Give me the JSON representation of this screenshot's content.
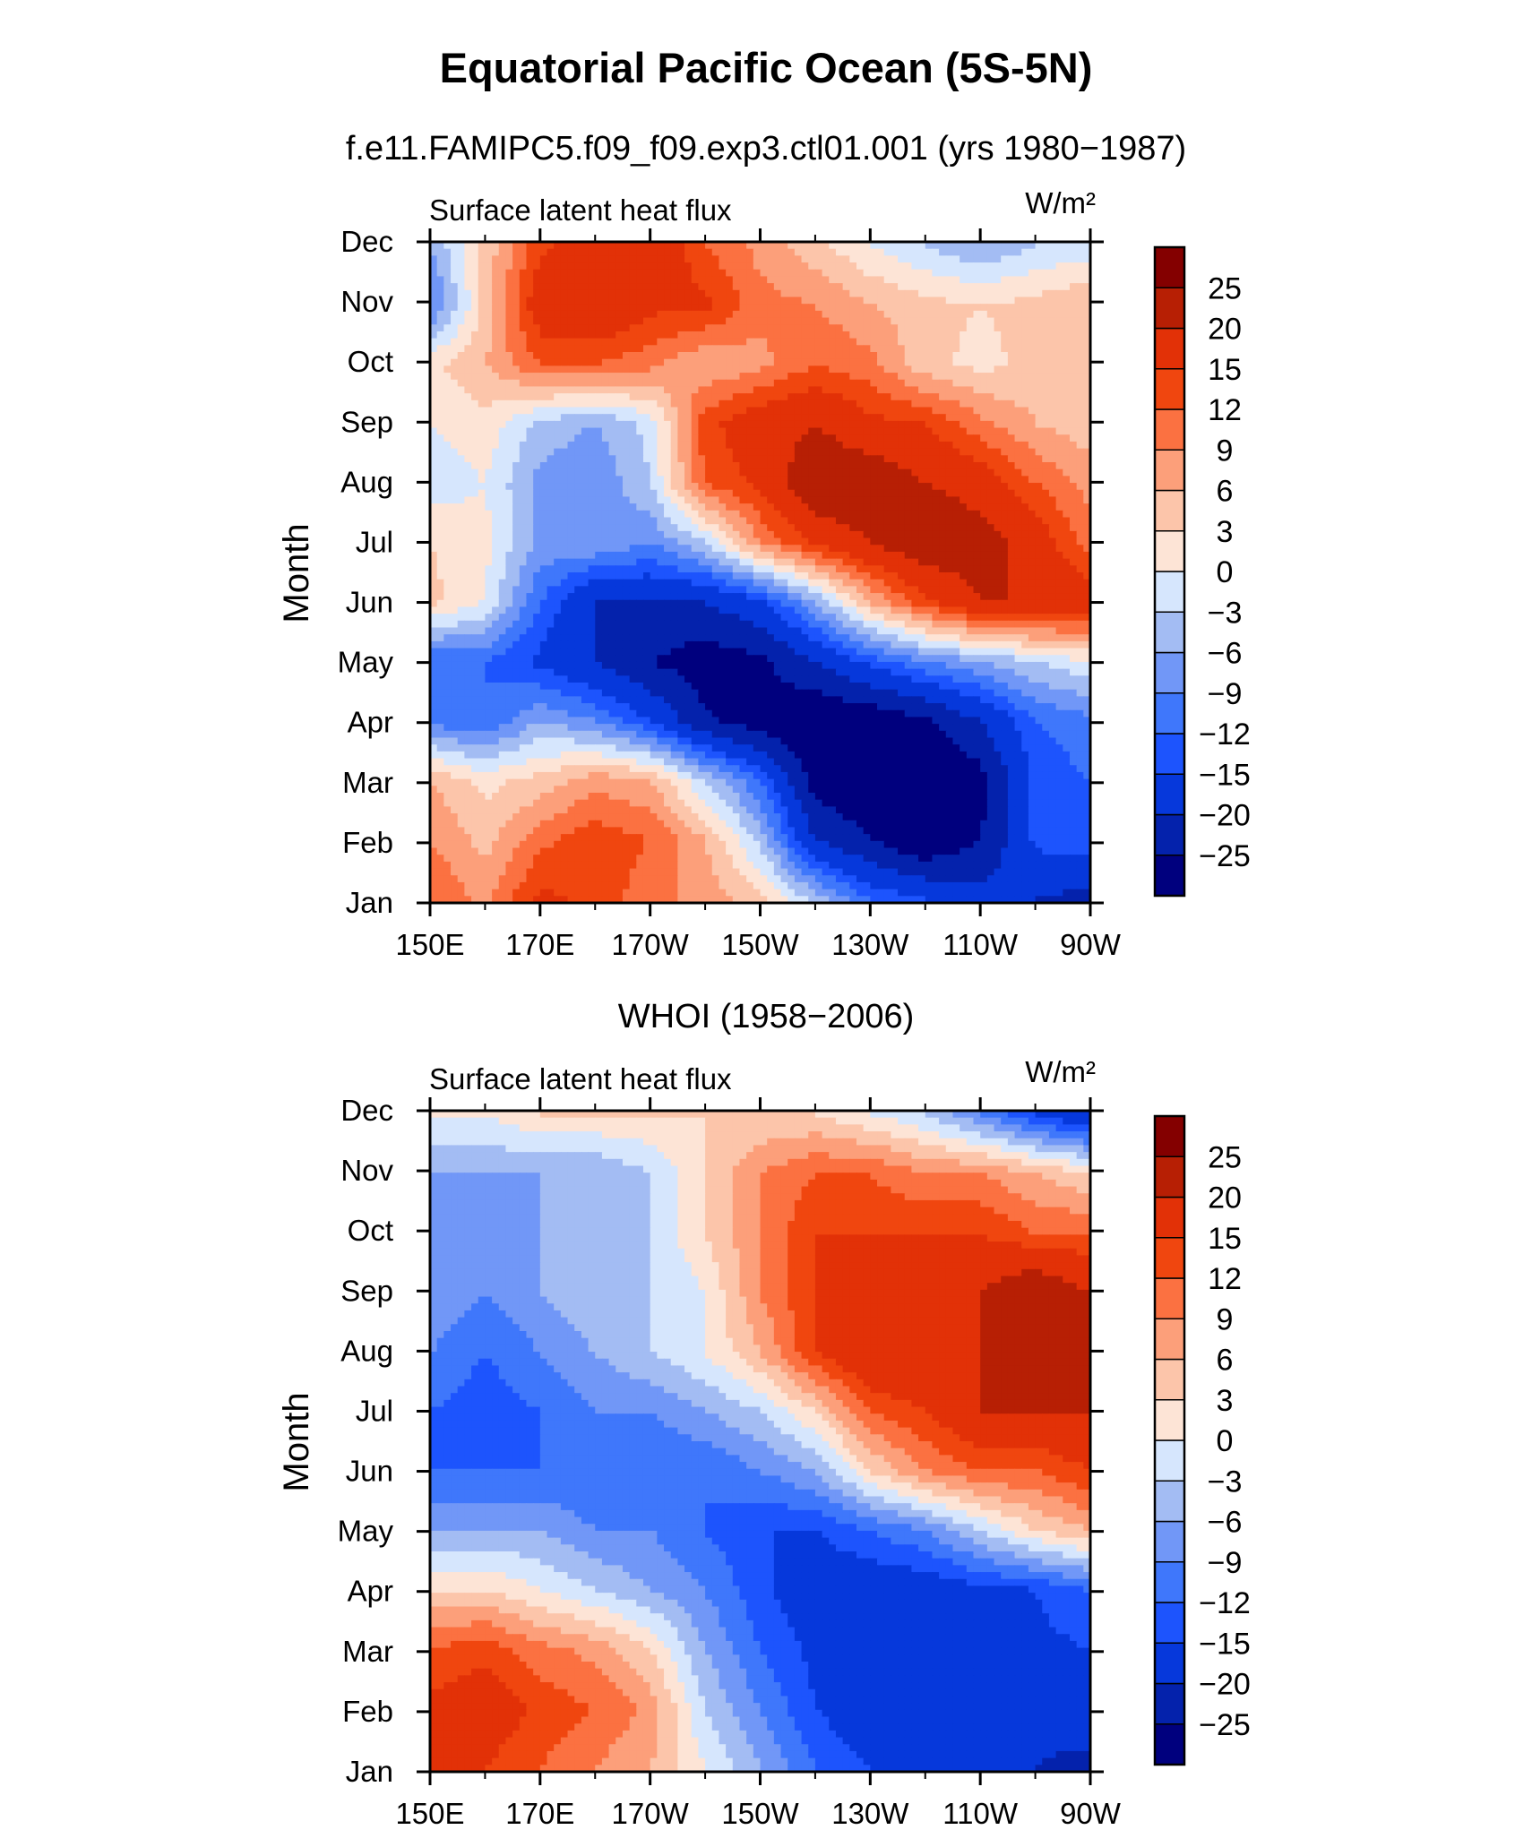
{
  "figure": {
    "title": "Equatorial Pacific Ocean (5S-5N)"
  },
  "colors": {
    "levels": [
      -25,
      -20,
      -15,
      -12,
      -9,
      -6,
      -3,
      0,
      3,
      6,
      9,
      12,
      15,
      20,
      25
    ],
    "fills": [
      "#00007e",
      "#0422ac",
      "#0638db",
      "#1d54fd",
      "#3f77fb",
      "#7197f7",
      "#a3bcf3",
      "#d6e6fd",
      "#fde4d6",
      "#fcc5aa",
      "#fc9f7a",
      "#fb7141",
      "#f0460f",
      "#e23107",
      "#b71f04",
      "#840000"
    ]
  },
  "chart_data": [
    {
      "type": "heatmap",
      "subtitle": "f.e11.FAMIPC5.f09_f09.exp3.ctl01.001 (yrs 1980−1987)",
      "left_string": "Surface latent heat flux",
      "units": "W/m²",
      "ylabel": "Month",
      "y_ticks": [
        "Jan",
        "Feb",
        "Mar",
        "Apr",
        "May",
        "Jun",
        "Jul",
        "Aug",
        "Sep",
        "Oct",
        "Nov",
        "Dec"
      ],
      "x_ticks": [
        "150E",
        "170E",
        "170W",
        "150W",
        "130W",
        "110W",
        "90W"
      ],
      "x_range": [
        150,
        270
      ],
      "colorbar_labels": [
        "25",
        "20",
        "15",
        "12",
        "9",
        "6",
        "3",
        "0",
        "−3",
        "−6",
        "−9",
        "−12",
        "−15",
        "−20",
        "−25"
      ],
      "lons": [
        150,
        160,
        170,
        180,
        190,
        200,
        210,
        220,
        230,
        240,
        250,
        260,
        270
      ],
      "values": [
        [
          12,
          8,
          16,
          14,
          10,
          8,
          4,
          -4,
          -12,
          -15,
          -18,
          -20,
          -22
        ],
        [
          9,
          5,
          11,
          14,
          12,
          6,
          -4,
          -20,
          -25,
          -30,
          -25,
          -14,
          -12
        ],
        [
          6,
          2,
          4,
          8,
          6,
          -3,
          -12,
          -27,
          -30,
          -30,
          -27,
          -14,
          -12
        ],
        [
          -10,
          -12,
          -6,
          -9,
          -15,
          -24,
          -28,
          -30,
          -29,
          -26,
          -20,
          -12,
          -10
        ],
        [
          -12,
          -12,
          -16,
          -20,
          -25,
          -28,
          -26,
          -20,
          -14,
          -9,
          -6,
          -3,
          0
        ],
        [
          4,
          0,
          -12,
          -20,
          -20,
          -20,
          -16,
          -6,
          6,
          14,
          20,
          20,
          18
        ],
        [
          3,
          1,
          -7,
          -6,
          -9,
          -3,
          9,
          16,
          20,
          24,
          22,
          18,
          10
        ],
        [
          -2,
          0,
          -7,
          -9,
          -3,
          12,
          16,
          24,
          24,
          20,
          18,
          12,
          8
        ],
        [
          0,
          2,
          -4,
          -6,
          -2,
          14,
          18,
          20,
          16,
          15,
          10,
          6,
          4
        ],
        [
          2,
          6,
          12,
          12,
          10,
          6,
          8,
          12,
          10,
          4,
          2,
          4,
          6
        ],
        [
          -10,
          4,
          18,
          20,
          16,
          16,
          10,
          9,
          6,
          4,
          3,
          4,
          6
        ],
        [
          -6,
          4,
          14,
          18,
          20,
          12,
          8,
          4,
          0,
          -3,
          -6,
          -3,
          -2
        ]
      ]
    },
    {
      "type": "heatmap",
      "subtitle": "WHOI (1958−2006)",
      "left_string": "Surface latent heat flux",
      "units": "W/m²",
      "ylabel": "Month",
      "y_ticks": [
        "Jan",
        "Feb",
        "Mar",
        "Apr",
        "May",
        "Jun",
        "Jul",
        "Aug",
        "Sep",
        "Oct",
        "Nov",
        "Dec"
      ],
      "x_ticks": [
        "150E",
        "170E",
        "170W",
        "150W",
        "130W",
        "110W",
        "90W"
      ],
      "x_range": [
        150,
        270
      ],
      "colorbar_labels": [
        "25",
        "20",
        "15",
        "12",
        "9",
        "6",
        "3",
        "0",
        "−3",
        "−6",
        "−9",
        "−12",
        "−15",
        "−20",
        "−25"
      ],
      "lons": [
        150,
        160,
        170,
        180,
        190,
        200,
        210,
        220,
        230,
        240,
        250,
        260,
        270
      ],
      "values": [
        [
          15,
          15,
          12,
          9,
          6,
          0,
          -6,
          -12,
          -15,
          -18,
          -18,
          -20,
          -22
        ],
        [
          16,
          18,
          14,
          12,
          8,
          -3,
          -9,
          -15,
          -18,
          -20,
          -20,
          -18,
          -16
        ],
        [
          12,
          14,
          10,
          8,
          3,
          -6,
          -12,
          -16,
          -18,
          -18,
          -18,
          -16,
          -15
        ],
        [
          3,
          3,
          0,
          -3,
          -6,
          -9,
          -14,
          -18,
          -18,
          -18,
          -16,
          -15,
          -12
        ],
        [
          -6,
          -6,
          -6,
          -9,
          -9,
          -12,
          -15,
          -15,
          -12,
          -9,
          -3,
          3,
          6
        ],
        [
          -12,
          -12,
          -12,
          -12,
          -12,
          -12,
          -9,
          -6,
          3,
          9,
          12,
          12,
          15
        ],
        [
          -12,
          -14,
          -12,
          -9,
          -9,
          -6,
          -3,
          3,
          12,
          15,
          20,
          20,
          20
        ],
        [
          -9,
          -12,
          -9,
          -6,
          -3,
          0,
          6,
          15,
          20,
          20,
          20,
          20,
          20
        ],
        [
          -6,
          -9,
          -6,
          -3,
          -3,
          0,
          9,
          15,
          15,
          15,
          20,
          25,
          20
        ],
        [
          -6,
          -9,
          -6,
          -6,
          -3,
          3,
          9,
          15,
          15,
          15,
          15,
          12,
          12
        ],
        [
          -6,
          -6,
          -6,
          -6,
          -3,
          3,
          9,
          12,
          12,
          9,
          9,
          6,
          3
        ],
        [
          0,
          0,
          3,
          3,
          3,
          3,
          3,
          3,
          0,
          -3,
          -9,
          -15,
          -20
        ]
      ]
    }
  ]
}
